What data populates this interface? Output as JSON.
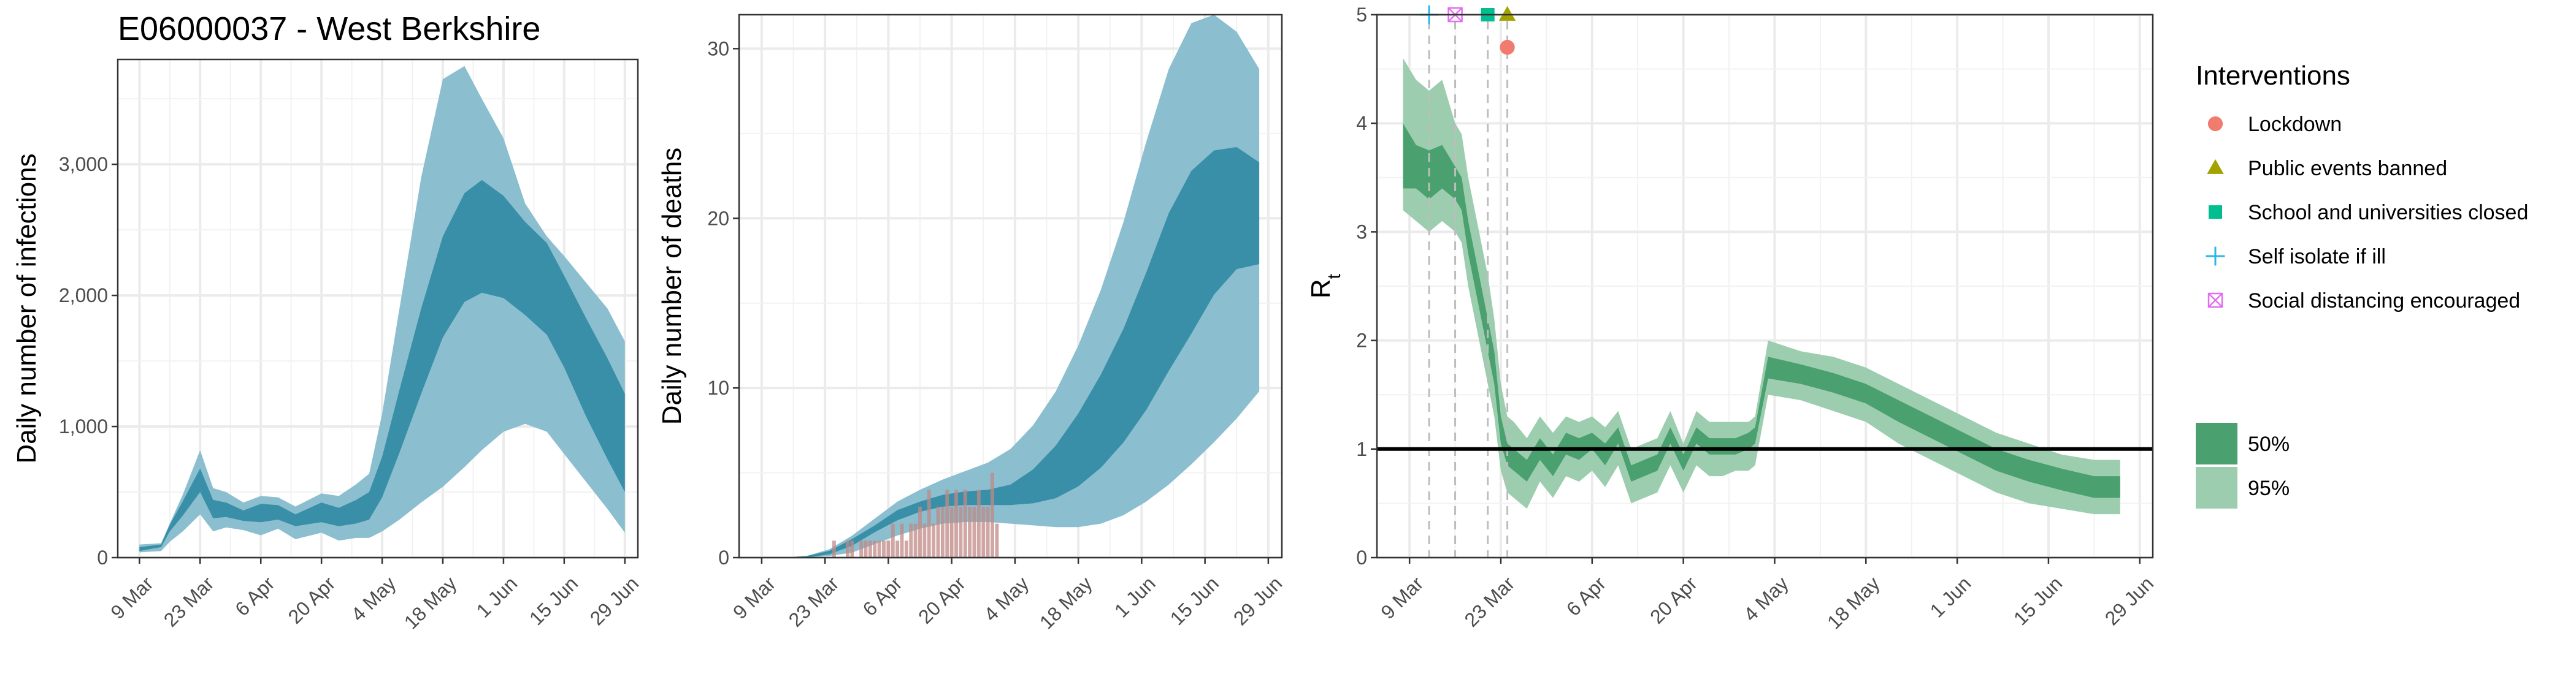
{
  "title": "E06000037 - West Berkshire",
  "colors": {
    "infections_outer": "#8bbfcf",
    "infections_inner": "#3a8fa8",
    "deaths_bar": "#c08a85",
    "rt_outer": "#9ccdae",
    "rt_inner": "#4aa06e",
    "lockdown": "#f07b6e",
    "public_events": "#a3a300",
    "school": "#00be8f",
    "self_isolate": "#29b7e8",
    "social_distancing": "#e36df2"
  },
  "chart_data": [
    {
      "name": "infections",
      "type": "area",
      "ylabel": "Daily number of infections",
      "ylim": [
        0,
        3800
      ],
      "yticks": [
        0,
        1000,
        2000,
        3000
      ],
      "ytick_labels": [
        "0",
        "1,000",
        "2,000",
        "3,000"
      ],
      "xlim": [
        "2020-03-04",
        "2020-07-02"
      ],
      "xticks": [
        "2020-03-09",
        "2020-03-23",
        "2020-04-06",
        "2020-04-20",
        "2020-05-04",
        "2020-05-18",
        "2020-06-01",
        "2020-06-15",
        "2020-06-29"
      ],
      "xtick_labels": [
        "9 Mar",
        "23 Mar",
        "6 Apr",
        "20 Apr",
        "4 May",
        "18 May",
        "1 Jun",
        "15 Jun",
        "29 Jun"
      ],
      "x": [
        "2020-03-09",
        "2020-03-14",
        "2020-03-16",
        "2020-03-19",
        "2020-03-23",
        "2020-03-26",
        "2020-03-29",
        "2020-04-02",
        "2020-04-06",
        "2020-04-10",
        "2020-04-14",
        "2020-04-20",
        "2020-04-24",
        "2020-04-28",
        "2020-05-01",
        "2020-05-04",
        "2020-05-08",
        "2020-05-13",
        "2020-05-18",
        "2020-05-23",
        "2020-05-27",
        "2020-06-01",
        "2020-06-06",
        "2020-06-11",
        "2020-06-15",
        "2020-06-20",
        "2020-06-25",
        "2020-06-29"
      ],
      "series": [
        {
          "name": "95%",
          "lower": [
            40,
            50,
            120,
            200,
            330,
            200,
            230,
            210,
            170,
            220,
            140,
            190,
            130,
            150,
            150,
            200,
            290,
            420,
            540,
            690,
            820,
            960,
            1020,
            960,
            790,
            580,
            370,
            190
          ],
          "upper": [
            100,
            110,
            260,
            480,
            820,
            530,
            500,
            420,
            470,
            460,
            390,
            490,
            470,
            560,
            640,
            1100,
            1900,
            2900,
            3650,
            3750,
            3500,
            3200,
            2700,
            2450,
            2300,
            2100,
            1900,
            1650
          ]
        },
        {
          "name": "50%",
          "lower": [
            50,
            80,
            200,
            320,
            500,
            300,
            310,
            280,
            270,
            290,
            240,
            270,
            240,
            260,
            290,
            460,
            800,
            1250,
            1680,
            1950,
            2020,
            1980,
            1850,
            1700,
            1450,
            1080,
            750,
            500
          ],
          "upper": [
            80,
            100,
            250,
            430,
            680,
            440,
            420,
            360,
            410,
            400,
            330,
            420,
            380,
            440,
            500,
            770,
            1280,
            1900,
            2450,
            2780,
            2880,
            2760,
            2560,
            2400,
            2150,
            1830,
            1520,
            1250
          ]
        }
      ]
    },
    {
      "name": "deaths",
      "type": "area",
      "ylabel": "Daily number of deaths",
      "ylim": [
        0,
        32
      ],
      "yticks": [
        0,
        10,
        20,
        30
      ],
      "ytick_labels": [
        "0",
        "10",
        "20",
        "30"
      ],
      "xlim": [
        "2020-03-04",
        "2020-07-02"
      ],
      "xticks": [
        "2020-03-09",
        "2020-03-23",
        "2020-04-06",
        "2020-04-20",
        "2020-05-04",
        "2020-05-18",
        "2020-06-01",
        "2020-06-15",
        "2020-06-29"
      ],
      "xtick_labels": [
        "9 Mar",
        "23 Mar",
        "6 Apr",
        "20 Apr",
        "4 May",
        "18 May",
        "1 Jun",
        "15 Jun",
        "29 Jun"
      ],
      "x": [
        "2020-03-09",
        "2020-03-14",
        "2020-03-19",
        "2020-03-24",
        "2020-03-29",
        "2020-04-03",
        "2020-04-08",
        "2020-04-13",
        "2020-04-18",
        "2020-04-23",
        "2020-04-28",
        "2020-05-03",
        "2020-05-08",
        "2020-05-13",
        "2020-05-18",
        "2020-05-23",
        "2020-05-28",
        "2020-06-02",
        "2020-06-07",
        "2020-06-12",
        "2020-06-17",
        "2020-06-22",
        "2020-06-27"
      ],
      "series": [
        {
          "name": "95%",
          "lower": [
            0,
            0,
            0,
            0.1,
            0.3,
            0.8,
            1.3,
            1.7,
            2.0,
            2.1,
            2.1,
            2.0,
            1.9,
            1.8,
            1.8,
            2.0,
            2.5,
            3.3,
            4.3,
            5.5,
            6.8,
            8.2,
            9.8
          ],
          "upper": [
            0,
            0,
            0.1,
            0.5,
            1.3,
            2.3,
            3.3,
            4.0,
            4.6,
            5.1,
            5.6,
            6.4,
            7.8,
            9.8,
            12.5,
            15.8,
            19.8,
            24.5,
            28.8,
            31.5,
            32.0,
            31.0,
            28.8
          ]
        },
        {
          "name": "50%",
          "lower": [
            0,
            0,
            0,
            0.2,
            0.7,
            1.5,
            2.2,
            2.7,
            3.0,
            3.1,
            3.1,
            3.1,
            3.2,
            3.5,
            4.2,
            5.3,
            6.8,
            8.7,
            11.0,
            13.2,
            15.5,
            17.0,
            17.3
          ],
          "upper": [
            0,
            0,
            0.1,
            0.4,
            1.1,
            1.9,
            2.8,
            3.3,
            3.7,
            3.9,
            4.0,
            4.3,
            5.2,
            6.6,
            8.5,
            10.8,
            13.5,
            16.8,
            20.3,
            22.8,
            24.0,
            24.2,
            23.3
          ]
        }
      ],
      "bars": {
        "x": [
          "2020-03-25",
          "2020-03-28",
          "2020-03-29",
          "2020-03-31",
          "2020-04-01",
          "2020-04-02",
          "2020-04-03",
          "2020-04-04",
          "2020-04-05",
          "2020-04-06",
          "2020-04-07",
          "2020-04-08",
          "2020-04-09",
          "2020-04-10",
          "2020-04-11",
          "2020-04-12",
          "2020-04-13",
          "2020-04-14",
          "2020-04-15",
          "2020-04-16",
          "2020-04-17",
          "2020-04-18",
          "2020-04-19",
          "2020-04-20",
          "2020-04-21",
          "2020-04-22",
          "2020-04-23",
          "2020-04-24",
          "2020-04-25",
          "2020-04-26",
          "2020-04-27",
          "2020-04-28",
          "2020-04-29",
          "2020-04-30"
        ],
        "values": [
          1,
          1,
          1,
          1,
          1,
          1,
          1,
          1,
          1,
          1,
          2,
          1,
          2,
          1,
          2,
          2,
          3,
          2,
          4,
          2,
          3,
          3,
          4,
          3,
          4,
          3,
          4,
          3,
          3,
          4,
          3,
          3,
          5,
          2
        ]
      }
    },
    {
      "name": "rt",
      "type": "area",
      "ylabel": "R",
      "ylabel_sub": "t",
      "ylim": [
        0,
        5
      ],
      "yticks": [
        0,
        1,
        2,
        3,
        4,
        5
      ],
      "ytick_labels": [
        "0",
        "1",
        "2",
        "3",
        "4",
        "5"
      ],
      "xlim": [
        "2020-03-04",
        "2020-07-01"
      ],
      "xticks": [
        "2020-03-09",
        "2020-03-23",
        "2020-04-06",
        "2020-04-20",
        "2020-05-04",
        "2020-05-18",
        "2020-06-01",
        "2020-06-15",
        "2020-06-29"
      ],
      "xtick_labels": [
        "9 Mar",
        "23 Mar",
        "6 Apr",
        "20 Apr",
        "4 May",
        "18 May",
        "1 Jun",
        "15 Jun",
        "29 Jun"
      ],
      "hline": 1,
      "x": [
        "2020-03-08",
        "2020-03-10",
        "2020-03-12",
        "2020-03-14",
        "2020-03-16",
        "2020-03-17",
        "2020-03-18",
        "2020-03-19",
        "2020-03-20",
        "2020-03-21",
        "2020-03-22",
        "2020-03-23",
        "2020-03-24",
        "2020-03-25",
        "2020-03-27",
        "2020-03-29",
        "2020-03-31",
        "2020-04-02",
        "2020-04-04",
        "2020-04-06",
        "2020-04-08",
        "2020-04-10",
        "2020-04-12",
        "2020-04-14",
        "2020-04-16",
        "2020-04-18",
        "2020-04-20",
        "2020-04-22",
        "2020-04-24",
        "2020-04-26",
        "2020-04-28",
        "2020-04-30",
        "2020-05-01",
        "2020-05-03",
        "2020-05-08",
        "2020-05-13",
        "2020-05-18",
        "2020-05-23",
        "2020-05-28",
        "2020-06-02",
        "2020-06-07",
        "2020-06-12",
        "2020-06-17",
        "2020-06-22",
        "2020-06-26"
      ],
      "series": [
        {
          "name": "95%",
          "lower": [
            3.2,
            3.1,
            3.0,
            3.1,
            3.0,
            2.9,
            2.5,
            2.2,
            1.9,
            1.6,
            1.3,
            0.8,
            0.6,
            0.55,
            0.45,
            0.7,
            0.55,
            0.75,
            0.7,
            0.8,
            0.65,
            0.85,
            0.5,
            0.55,
            0.6,
            0.85,
            0.6,
            0.85,
            0.75,
            0.75,
            0.8,
            0.8,
            0.85,
            1.5,
            1.45,
            1.35,
            1.25,
            1.05,
            0.9,
            0.75,
            0.6,
            0.5,
            0.45,
            0.4,
            0.4
          ],
          "upper": [
            4.6,
            4.4,
            4.3,
            4.4,
            4.0,
            3.9,
            3.5,
            3.2,
            2.9,
            2.6,
            2.2,
            1.6,
            1.3,
            1.25,
            1.1,
            1.3,
            1.15,
            1.3,
            1.25,
            1.3,
            1.2,
            1.35,
            1.0,
            1.05,
            1.1,
            1.35,
            1.05,
            1.35,
            1.25,
            1.25,
            1.25,
            1.25,
            1.3,
            2.0,
            1.9,
            1.85,
            1.75,
            1.6,
            1.45,
            1.3,
            1.15,
            1.05,
            0.95,
            0.9,
            0.9
          ]
        },
        {
          "name": "50%",
          "lower": [
            3.4,
            3.4,
            3.3,
            3.4,
            3.3,
            3.2,
            2.8,
            2.5,
            2.2,
            1.9,
            1.6,
            1.05,
            0.85,
            0.8,
            0.7,
            0.9,
            0.75,
            0.95,
            0.9,
            1.0,
            0.85,
            1.05,
            0.7,
            0.75,
            0.8,
            1.05,
            0.8,
            1.05,
            0.95,
            0.95,
            0.95,
            1.0,
            1.05,
            1.65,
            1.6,
            1.52,
            1.42,
            1.25,
            1.1,
            0.95,
            0.8,
            0.7,
            0.62,
            0.55,
            0.55
          ],
          "upper": [
            4.0,
            3.8,
            3.75,
            3.8,
            3.6,
            3.5,
            3.1,
            2.8,
            2.5,
            2.2,
            1.9,
            1.3,
            1.05,
            1.0,
            0.9,
            1.1,
            0.95,
            1.15,
            1.1,
            1.15,
            1.05,
            1.2,
            0.85,
            0.9,
            0.95,
            1.2,
            0.95,
            1.2,
            1.1,
            1.1,
            1.1,
            1.15,
            1.2,
            1.85,
            1.78,
            1.7,
            1.6,
            1.45,
            1.3,
            1.15,
            1.0,
            0.9,
            0.82,
            0.75,
            0.75
          ]
        }
      ],
      "interventions": [
        {
          "label": "Self isolate if ill",
          "date": "2020-03-12",
          "marker": "plus",
          "color_key": "self_isolate",
          "y": 5.0
        },
        {
          "label": "Social distancing encouraged",
          "date": "2020-03-16",
          "marker": "boxx",
          "color_key": "social_distancing",
          "y": 5.0
        },
        {
          "label": "School and universities closed",
          "date": "2020-03-21",
          "marker": "square",
          "color_key": "school",
          "y": 5.0
        },
        {
          "label": "Public events banned",
          "date": "2020-03-24",
          "marker": "triangle",
          "color_key": "public_events",
          "y": 5.0
        },
        {
          "label": "Lockdown",
          "date": "2020-03-24",
          "marker": "circle",
          "color_key": "lockdown",
          "y": 4.7
        }
      ]
    }
  ],
  "legend": {
    "title": "Interventions",
    "items": [
      {
        "label": "Lockdown",
        "marker": "circle",
        "color_key": "lockdown"
      },
      {
        "label": "Public events banned",
        "marker": "triangle",
        "color_key": "public_events"
      },
      {
        "label": "School and universities closed",
        "marker": "square",
        "color_key": "school"
      },
      {
        "label": "Self isolate if ill",
        "marker": "plus",
        "color_key": "self_isolate"
      },
      {
        "label": "Social distancing encouraged",
        "marker": "boxx",
        "color_key": "social_distancing"
      }
    ],
    "bands": [
      {
        "label": "50%",
        "color_key": "rt_inner"
      },
      {
        "label": "95%",
        "color_key": "rt_outer"
      }
    ]
  }
}
